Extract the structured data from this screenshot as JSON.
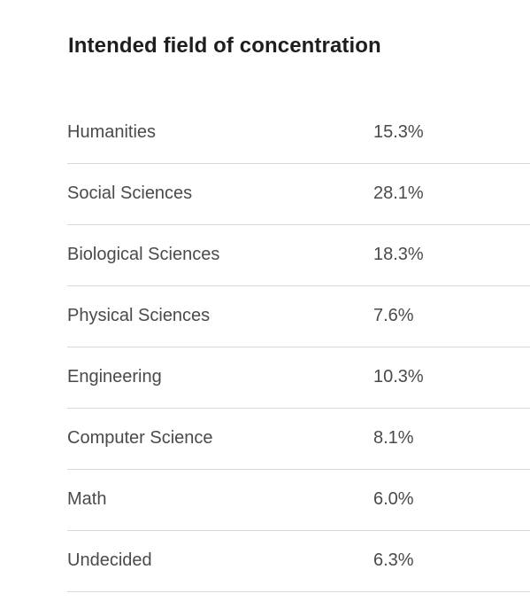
{
  "heading": "Intended field of concentration",
  "rows": [
    {
      "label": "Humanities",
      "value": "15.3%"
    },
    {
      "label": "Social Sciences",
      "value": "28.1%"
    },
    {
      "label": "Biological Sciences",
      "value": "18.3%"
    },
    {
      "label": "Physical Sciences",
      "value": "7.6%"
    },
    {
      "label": "Engineering",
      "value": "10.3%"
    },
    {
      "label": "Computer Science",
      "value": "8.1%"
    },
    {
      "label": "Math",
      "value": "6.0%"
    },
    {
      "label": "Undecided",
      "value": "6.3%"
    }
  ]
}
